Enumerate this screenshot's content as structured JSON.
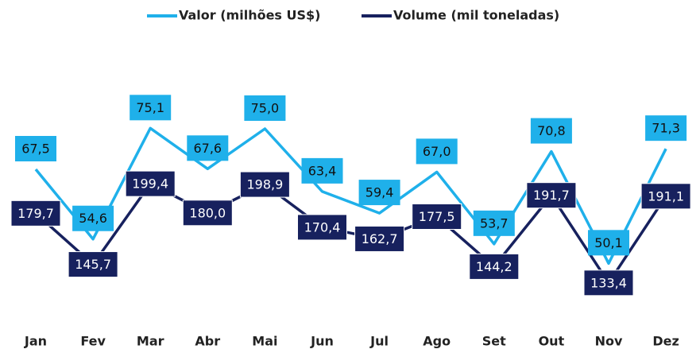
{
  "chart_data": {
    "type": "line",
    "categories": [
      "Jan",
      "Fev",
      "Mar",
      "Abr",
      "Mai",
      "Jun",
      "Jul",
      "Ago",
      "Set",
      "Out",
      "Nov",
      "Dez"
    ],
    "series": [
      {
        "name": "Valor (milhões US$)",
        "color": "#1fb0ea",
        "values": [
          67.5,
          54.6,
          75.1,
          67.6,
          75.0,
          63.4,
          59.4,
          67.0,
          53.7,
          70.8,
          50.1,
          71.3
        ],
        "value_labels": [
          "67,5",
          "54,6",
          "75,1",
          "67,6",
          "75,0",
          "63,4",
          "59,4",
          "67,0",
          "53,7",
          "70,8",
          "50,1",
          "71,3"
        ]
      },
      {
        "name": "Volume (mil toneladas)",
        "color": "#17215e",
        "axis": "y2",
        "values": [
          179.7,
          145.7,
          199.4,
          180.0,
          198.9,
          170.4,
          162.7,
          177.5,
          144.2,
          191.7,
          133.4,
          191.1
        ],
        "value_labels": [
          "179,7",
          "145,7",
          "199,4",
          "180,0",
          "198,9",
          "170,4",
          "162,7",
          "177,5",
          "144,2",
          "191,7",
          "133,4",
          "191,1"
        ]
      }
    ],
    "ylim": [
      40,
      90
    ],
    "y2lim": [
      110,
      290
    ],
    "legend": "top"
  }
}
